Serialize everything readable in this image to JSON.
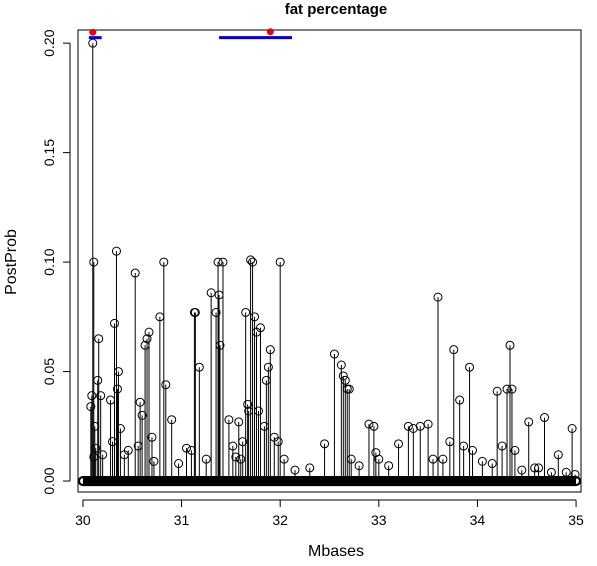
{
  "chart_data": {
    "type": "scatter",
    "title": "fat percentage",
    "xlabel": "Mbases",
    "ylabel": "PostProb",
    "xlim": [
      29.95,
      35.05
    ],
    "ylim": [
      -0.005,
      0.206
    ],
    "x_ticks": [
      "30",
      "31",
      "32",
      "33",
      "34",
      "35"
    ],
    "y_ticks": [
      "0.00",
      "0.05",
      "0.10",
      "0.15",
      "0.20"
    ],
    "grid": false,
    "legend": "none",
    "marker": "open-circle with vertical stem",
    "colors": {
      "points": "#000000",
      "interval": "#0000cc",
      "peak": "#ee0000"
    },
    "intervals": [
      {
        "x_start": 30.06,
        "x_end": 30.19,
        "y": 0.2025
      },
      {
        "x_start": 31.38,
        "x_end": 32.12,
        "y": 0.2025
      }
    ],
    "peaks": [
      {
        "x": 30.1,
        "y": 0.205
      },
      {
        "x": 31.9,
        "y": 0.2052
      }
    ],
    "points": [
      [
        30.1,
        0.2
      ],
      [
        30.11,
        0.1
      ],
      [
        30.09,
        0.039
      ],
      [
        30.08,
        0.034
      ],
      [
        30.12,
        0.025
      ],
      [
        30.13,
        0.015
      ],
      [
        30.11,
        0.011
      ],
      [
        30.16,
        0.065
      ],
      [
        30.15,
        0.046
      ],
      [
        30.18,
        0.039
      ],
      [
        30.2,
        0.012
      ],
      [
        30.28,
        0.037
      ],
      [
        30.3,
        0.018
      ],
      [
        30.32,
        0.072
      ],
      [
        30.34,
        0.105
      ],
      [
        30.35,
        0.042
      ],
      [
        30.36,
        0.05
      ],
      [
        30.38,
        0.024
      ],
      [
        30.42,
        0.012
      ],
      [
        30.46,
        0.014
      ],
      [
        30.53,
        0.095
      ],
      [
        30.56,
        0.016
      ],
      [
        30.58,
        0.036
      ],
      [
        30.6,
        0.03
      ],
      [
        30.63,
        0.062
      ],
      [
        30.65,
        0.065
      ],
      [
        30.67,
        0.068
      ],
      [
        30.7,
        0.02
      ],
      [
        30.72,
        0.009
      ],
      [
        30.78,
        0.075
      ],
      [
        30.82,
        0.1
      ],
      [
        30.84,
        0.044
      ],
      [
        30.9,
        0.028
      ],
      [
        30.97,
        0.008
      ],
      [
        31.05,
        0.015
      ],
      [
        31.1,
        0.014
      ],
      [
        31.13,
        0.077
      ],
      [
        31.14,
        0.077
      ],
      [
        31.18,
        0.052
      ],
      [
        31.25,
        0.01
      ],
      [
        31.3,
        0.086
      ],
      [
        31.35,
        0.077
      ],
      [
        31.37,
        0.1
      ],
      [
        31.38,
        0.085
      ],
      [
        31.39,
        0.062
      ],
      [
        31.42,
        0.1
      ],
      [
        31.48,
        0.028
      ],
      [
        31.52,
        0.016
      ],
      [
        31.55,
        0.011
      ],
      [
        31.58,
        0.027
      ],
      [
        31.6,
        0.01
      ],
      [
        31.62,
        0.018
      ],
      [
        31.65,
        0.077
      ],
      [
        31.67,
        0.035
      ],
      [
        31.68,
        0.032
      ],
      [
        31.7,
        0.101
      ],
      [
        31.72,
        0.1
      ],
      [
        31.74,
        0.075
      ],
      [
        31.76,
        0.068
      ],
      [
        31.78,
        0.032
      ],
      [
        31.8,
        0.07
      ],
      [
        31.84,
        0.025
      ],
      [
        31.86,
        0.046
      ],
      [
        31.88,
        0.052
      ],
      [
        31.9,
        0.06
      ],
      [
        31.94,
        0.02
      ],
      [
        31.98,
        0.018
      ],
      [
        32.0,
        0.1
      ],
      [
        32.04,
        0.01
      ],
      [
        32.15,
        0.005
      ],
      [
        32.3,
        0.006
      ],
      [
        32.45,
        0.017
      ],
      [
        32.55,
        0.058
      ],
      [
        32.62,
        0.053
      ],
      [
        32.64,
        0.048
      ],
      [
        32.66,
        0.046
      ],
      [
        32.68,
        0.042
      ],
      [
        32.7,
        0.042
      ],
      [
        32.72,
        0.01
      ],
      [
        32.8,
        0.007
      ],
      [
        32.9,
        0.026
      ],
      [
        32.95,
        0.025
      ],
      [
        32.97,
        0.013
      ],
      [
        33.0,
        0.01
      ],
      [
        33.1,
        0.007
      ],
      [
        33.2,
        0.017
      ],
      [
        33.3,
        0.025
      ],
      [
        33.35,
        0.024
      ],
      [
        33.42,
        0.025
      ],
      [
        33.5,
        0.026
      ],
      [
        33.55,
        0.01
      ],
      [
        33.6,
        0.084
      ],
      [
        33.65,
        0.01
      ],
      [
        33.72,
        0.018
      ],
      [
        33.76,
        0.06
      ],
      [
        33.82,
        0.037
      ],
      [
        33.86,
        0.016
      ],
      [
        33.92,
        0.052
      ],
      [
        33.95,
        0.014
      ],
      [
        34.05,
        0.009
      ],
      [
        34.15,
        0.008
      ],
      [
        34.2,
        0.041
      ],
      [
        34.25,
        0.016
      ],
      [
        34.3,
        0.042
      ],
      [
        34.33,
        0.062
      ],
      [
        34.35,
        0.042
      ],
      [
        34.38,
        0.014
      ],
      [
        34.45,
        0.005
      ],
      [
        34.52,
        0.027
      ],
      [
        34.58,
        0.006
      ],
      [
        34.62,
        0.006
      ],
      [
        34.68,
        0.029
      ],
      [
        34.75,
        0.004
      ],
      [
        34.82,
        0.012
      ],
      [
        34.9,
        0.004
      ],
      [
        34.96,
        0.024
      ],
      [
        34.99,
        0.003
      ]
    ]
  }
}
